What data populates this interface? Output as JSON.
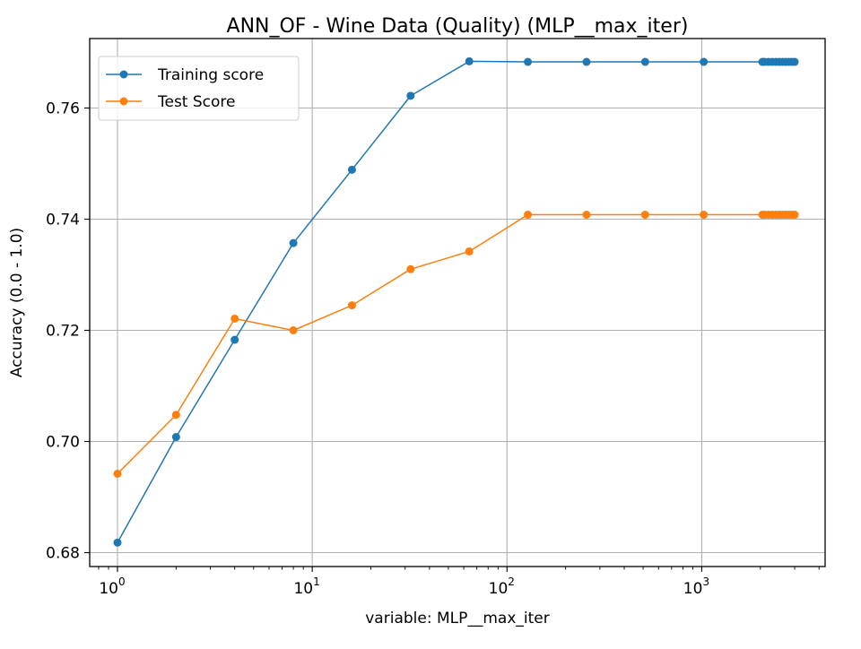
{
  "chart_data": {
    "type": "line",
    "title": "ANN_OF - Wine Data (Quality) (MLP__max_iter)",
    "xlabel": "variable: MLP__max_iter",
    "ylabel": "Accuracy (0.0 - 1.0)",
    "x_scale": "log",
    "xlim": [
      0.72,
      4300
    ],
    "ylim": [
      0.6775,
      0.7725
    ],
    "grid": true,
    "legend_position": "top-left",
    "x_ticks": [
      {
        "value": 1,
        "base": "10",
        "exp": "0"
      },
      {
        "value": 10,
        "base": "10",
        "exp": "1"
      },
      {
        "value": 100,
        "base": "10",
        "exp": "2"
      },
      {
        "value": 1000,
        "base": "10",
        "exp": "3"
      }
    ],
    "y_ticks": [
      0.68,
      0.7,
      0.72,
      0.74,
      0.76
    ],
    "y_tick_labels": [
      "0.68",
      "0.70",
      "0.72",
      "0.74",
      "0.76"
    ],
    "x": [
      1,
      2,
      4,
      8,
      16,
      32,
      64,
      128,
      256,
      512,
      1024,
      2048,
      2100,
      2200,
      2300,
      2400,
      2500,
      2600,
      2700,
      2800,
      2900,
      3000
    ],
    "series": [
      {
        "name": "Training score",
        "color": "#1f77b4",
        "values": [
          0.6818,
          0.7008,
          0.7183,
          0.7357,
          0.7489,
          0.7622,
          0.7684,
          0.7683,
          0.7683,
          0.7683,
          0.7683,
          0.7683,
          0.7683,
          0.7683,
          0.7683,
          0.7683,
          0.7683,
          0.7683,
          0.7683,
          0.7683,
          0.7683,
          0.7683
        ]
      },
      {
        "name": "Test Score",
        "color": "#ff7f0e",
        "values": [
          0.6942,
          0.7048,
          0.7221,
          0.72,
          0.7245,
          0.731,
          0.7342,
          0.7408,
          0.7408,
          0.7408,
          0.7408,
          0.7408,
          0.7408,
          0.7408,
          0.7408,
          0.7408,
          0.7408,
          0.7408,
          0.7408,
          0.7408,
          0.7408,
          0.7408
        ]
      }
    ]
  }
}
